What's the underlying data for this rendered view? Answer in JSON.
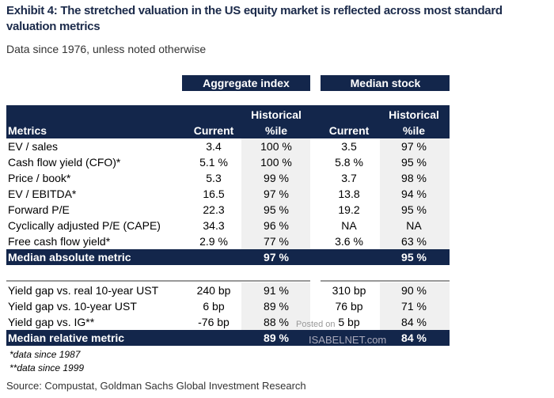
{
  "header": {
    "title": "Exhibit 4: The stretched valuation in the US equity market is reflected across most standard valuation metrics",
    "subtitle": "Data since 1976, unless noted otherwise"
  },
  "table": {
    "groups": [
      "Aggregate index",
      "Median stock"
    ],
    "columns": [
      [
        "Metrics"
      ],
      [
        "Current"
      ],
      [
        "Historical",
        "%ile"
      ],
      [
        "Current"
      ],
      [
        "Historical",
        "%ile"
      ]
    ],
    "sections": [
      {
        "rows": [
          [
            "EV / sales",
            "3.4",
            "100 %",
            "3.5",
            "97 %"
          ],
          [
            "Cash flow yield (CFO)*",
            "5.1 %",
            "100 %",
            "5.8 %",
            "95 %"
          ],
          [
            "Price / book*",
            "5.3",
            "99 %",
            "3.7",
            "98 %"
          ],
          [
            "EV / EBITDA*",
            "16.5",
            "97 %",
            "13.8",
            "94 %"
          ],
          [
            "Forward P/E",
            "22.3",
            "95 %",
            "19.2",
            "95 %"
          ],
          [
            "Cyclically adjusted P/E (CAPE)",
            "34.3",
            "96 %",
            "NA",
            "NA"
          ],
          [
            "Free cash flow yield*",
            "2.9 %",
            "77 %",
            "3.6 %",
            "63 %"
          ]
        ],
        "summary": {
          "label": "Median absolute metric",
          "aggregate": "97 %",
          "median": "95 %"
        }
      },
      {
        "rows": [
          [
            "Yield gap vs. real 10-year UST",
            "240 bp",
            "91 %",
            "310 bp",
            "90 %"
          ],
          [
            "Yield gap vs. 10-year UST",
            "6 bp",
            "89 %",
            "76 bp",
            "71 %"
          ],
          [
            "Yield gap vs. IG**",
            "-76 bp",
            "88 %",
            "5 bp",
            "84 %"
          ]
        ],
        "summary": {
          "label": "Median relative metric",
          "aggregate": "89 %",
          "median": "84 %"
        }
      }
    ]
  },
  "notes": [
    "*data since 1987",
    "**data since 1999"
  ],
  "source": "Source: Compustat, Goldman Sachs Global Investment Research",
  "watermark": [
    "Posted on",
    "ISABELNET.com"
  ]
}
